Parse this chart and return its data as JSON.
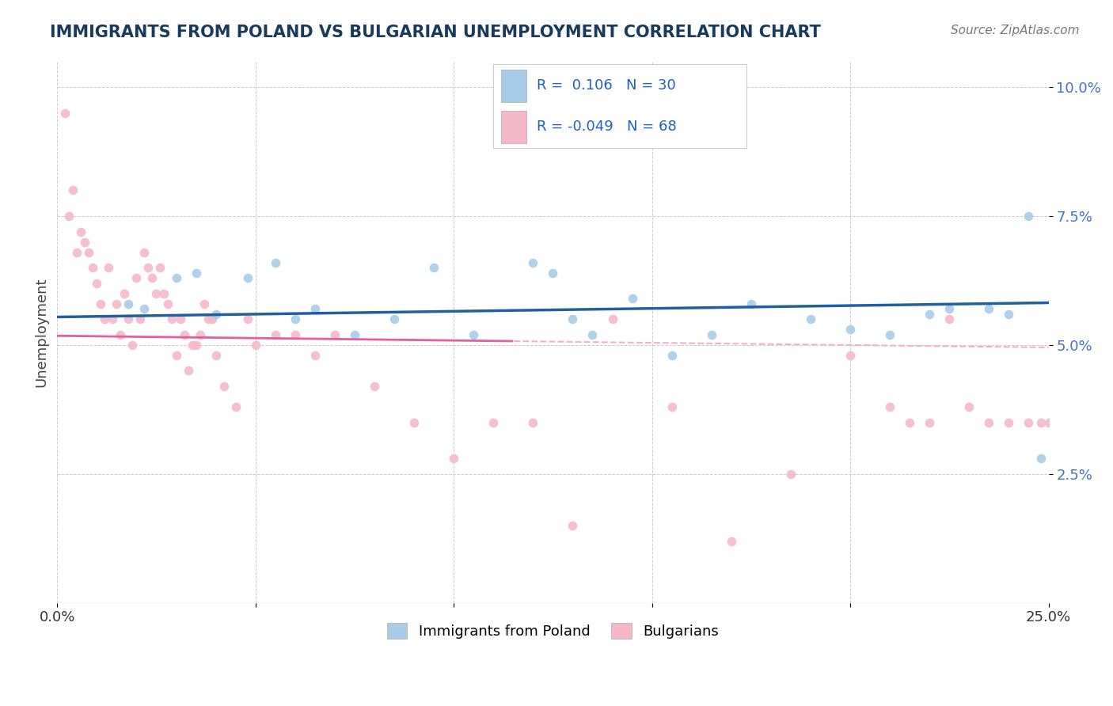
{
  "title": "IMMIGRANTS FROM POLAND VS BULGARIAN UNEMPLOYMENT CORRELATION CHART",
  "source_text": "Source: ZipAtlas.com",
  "ylabel": "Unemployment",
  "xlim": [
    0.0,
    0.25
  ],
  "ylim": [
    0.0,
    0.105
  ],
  "xticks": [
    0.0,
    0.05,
    0.1,
    0.15,
    0.2,
    0.25
  ],
  "xtick_labels": [
    "0.0%",
    "",
    "",
    "",
    "",
    "25.0%"
  ],
  "yticks": [
    0.025,
    0.05,
    0.075,
    0.1
  ],
  "ytick_labels": [
    "2.5%",
    "5.0%",
    "7.5%",
    "10.0%"
  ],
  "blue_color": "#a8cce8",
  "pink_color": "#f4b8c8",
  "blue_line_color": "#2060a0",
  "pink_line_solid_color": "#e060a0",
  "pink_line_dash_color": "#f0b0c8",
  "legend_label1": "Immigrants from Poland",
  "legend_label2": "Bulgarians",
  "blue_R": "R =  0.106",
  "blue_N": "N = 30",
  "pink_R": "R = -0.049",
  "pink_N": "N = 68",
  "blue_scatter_x": [
    0.018,
    0.022,
    0.03,
    0.035,
    0.04,
    0.048,
    0.055,
    0.06,
    0.065,
    0.075,
    0.085,
    0.095,
    0.105,
    0.12,
    0.125,
    0.13,
    0.135,
    0.145,
    0.155,
    0.165,
    0.175,
    0.19,
    0.2,
    0.21,
    0.22,
    0.225,
    0.235,
    0.24,
    0.245,
    0.248
  ],
  "blue_scatter_y": [
    0.058,
    0.057,
    0.063,
    0.064,
    0.056,
    0.063,
    0.066,
    0.055,
    0.057,
    0.052,
    0.055,
    0.065,
    0.052,
    0.066,
    0.064,
    0.055,
    0.052,
    0.059,
    0.048,
    0.052,
    0.058,
    0.055,
    0.053,
    0.052,
    0.056,
    0.057,
    0.057,
    0.056,
    0.075,
    0.028
  ],
  "pink_scatter_x": [
    0.002,
    0.003,
    0.004,
    0.005,
    0.006,
    0.007,
    0.008,
    0.009,
    0.01,
    0.011,
    0.012,
    0.013,
    0.014,
    0.015,
    0.016,
    0.017,
    0.018,
    0.019,
    0.02,
    0.021,
    0.022,
    0.023,
    0.024,
    0.025,
    0.026,
    0.027,
    0.028,
    0.029,
    0.03,
    0.031,
    0.032,
    0.033,
    0.034,
    0.035,
    0.036,
    0.037,
    0.038,
    0.039,
    0.04,
    0.042,
    0.045,
    0.048,
    0.05,
    0.055,
    0.06,
    0.065,
    0.07,
    0.08,
    0.09,
    0.1,
    0.11,
    0.12,
    0.13,
    0.14,
    0.155,
    0.17,
    0.185,
    0.2,
    0.21,
    0.215,
    0.22,
    0.225,
    0.23,
    0.235,
    0.24,
    0.245,
    0.248,
    0.25
  ],
  "pink_scatter_y": [
    0.095,
    0.075,
    0.08,
    0.068,
    0.072,
    0.07,
    0.068,
    0.065,
    0.062,
    0.058,
    0.055,
    0.065,
    0.055,
    0.058,
    0.052,
    0.06,
    0.055,
    0.05,
    0.063,
    0.055,
    0.068,
    0.065,
    0.063,
    0.06,
    0.065,
    0.06,
    0.058,
    0.055,
    0.048,
    0.055,
    0.052,
    0.045,
    0.05,
    0.05,
    0.052,
    0.058,
    0.055,
    0.055,
    0.048,
    0.042,
    0.038,
    0.055,
    0.05,
    0.052,
    0.052,
    0.048,
    0.052,
    0.042,
    0.035,
    0.028,
    0.035,
    0.035,
    0.015,
    0.055,
    0.038,
    0.012,
    0.025,
    0.048,
    0.038,
    0.035,
    0.035,
    0.055,
    0.038,
    0.035,
    0.035,
    0.035,
    0.035,
    0.035
  ]
}
